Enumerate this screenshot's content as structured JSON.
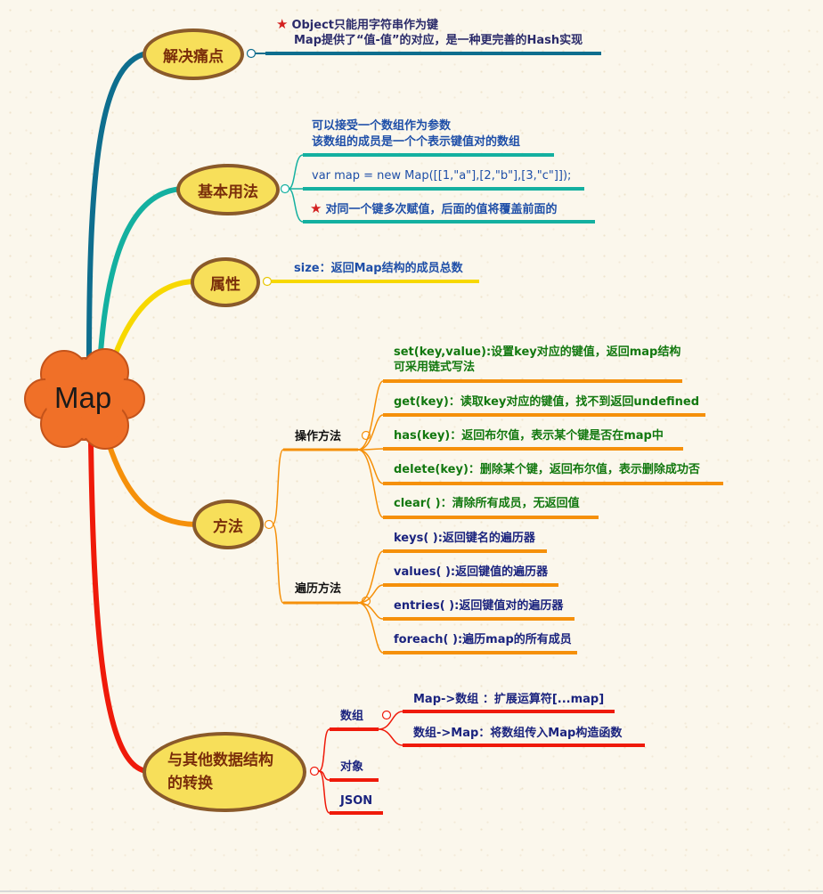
{
  "root": {
    "label": "Map",
    "color": "#f07028"
  },
  "branches": {
    "pain": {
      "label": "解决痛点",
      "items": [
        "Object只能用字符串作为键",
        "Map提供了“值-值”的对应，是一种更完善的Hash实现"
      ]
    },
    "usage": {
      "label": "基本用法",
      "items": [
        "可以接受一个数组作为参数",
        "该数组的成员是一个个表示键值对的数组",
        "var map = new Map([[1,\"a\"],[2,\"b\"],[3,\"c\"]]);",
        "对同一个键多次赋值，后面的值将覆盖前面的"
      ]
    },
    "props": {
      "label": "属性",
      "items": [
        "size：返回Map结构的成员总数"
      ]
    },
    "methods": {
      "label": "方法",
      "ops": {
        "label": "操作方法",
        "items": [
          "set(key,value):设置key对应的键值，返回map结构",
          "可采用链式写法",
          "get(key)：读取key对应的键值，找不到返回undefined",
          "has(key)：返回布尔值，表示某个键是否在map中",
          "delete(key)：删除某个键，返回布尔值，表示删除成功否",
          "clear( )：清除所有成员，无返回值"
        ]
      },
      "iter": {
        "label": "遍历方法",
        "items": [
          "keys( ):返回键名的遍历器",
          "values( ):返回键值的遍历器",
          "entries( ):返回键值对的遍历器",
          "foreach( ):遍历map的所有成员"
        ]
      }
    },
    "convert": {
      "label1": "与其他数据结构",
      "label2": "的转换",
      "array": {
        "label": "数组",
        "items": [
          "Map->数组 ：扩展运算符[...map]",
          "数组->Map：将数组传入Map构造函数"
        ]
      },
      "object": {
        "label": "对象"
      },
      "json": {
        "label": "JSON"
      }
    }
  },
  "colors": {
    "pain": "#0e6e8e",
    "usage": "#14b0a0",
    "props": "#f7d800",
    "methods": "#f5900a",
    "convert": "#ef1a0a",
    "oval_fill": "#f7df5a",
    "oval_border": "#8a5a2a"
  },
  "icons": {
    "star": "star-icon",
    "collapse": "collapse-circle-icon"
  }
}
